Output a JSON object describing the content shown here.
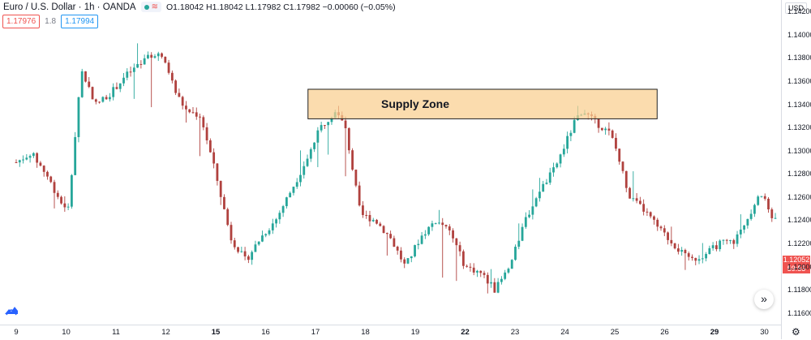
{
  "header": {
    "symbol": "Euro / U.S. Dollar · 1h · OANDA",
    "ohlc": "O1.18042 H1.18042 L1.17982 C1.17982 −0.00060 (−0.05%)",
    "status_dot_color": "#26a69a",
    "waves_icon": "waves-icon"
  },
  "trade": {
    "sell_price": "1.17976",
    "spread": "1.8",
    "buy_price": "1.17994"
  },
  "axis": {
    "currency": "USD",
    "price_tags": {
      "last": "1.12052",
      "countdown": "59:55"
    }
  },
  "colors": {
    "up": "#26a69a",
    "down": "#b0413e",
    "zone_fill": "#f9cf8f",
    "zone_border": "#222222"
  },
  "chart_data": {
    "type": "candlestick",
    "title": "",
    "ylim": [
      1.115,
      1.143
    ],
    "y_ticks": [
      "1.11600",
      "1.11800",
      "1.12000",
      "1.12200",
      "1.12400",
      "1.12600",
      "1.12800",
      "1.13000",
      "1.13200",
      "1.13400",
      "1.13600",
      "1.13800",
      "1.14000",
      "1.14200"
    ],
    "x_ticks": [
      {
        "label": "9",
        "bold": false
      },
      {
        "label": "10",
        "bold": false
      },
      {
        "label": "11",
        "bold": false
      },
      {
        "label": "12",
        "bold": false
      },
      {
        "label": "15",
        "bold": true
      },
      {
        "label": "16",
        "bold": false
      },
      {
        "label": "17",
        "bold": false
      },
      {
        "label": "18",
        "bold": false
      },
      {
        "label": "19",
        "bold": false
      },
      {
        "label": "22",
        "bold": true
      },
      {
        "label": "23",
        "bold": false
      },
      {
        "label": "24",
        "bold": false
      },
      {
        "label": "25",
        "bold": false
      },
      {
        "label": "26",
        "bold": false
      },
      {
        "label": "29",
        "bold": true
      },
      {
        "label": "30",
        "bold": false
      }
    ],
    "close_path": [
      [
        0,
        1.129
      ],
      [
        0.3,
        1.1298
      ],
      [
        0.6,
        1.128
      ],
      [
        0.9,
        1.1255
      ],
      [
        1.05,
        1.125
      ],
      [
        1.3,
        1.137
      ],
      [
        1.6,
        1.134
      ],
      [
        1.9,
        1.135
      ],
      [
        2.2,
        1.1365
      ],
      [
        2.5,
        1.1375
      ],
      [
        2.8,
        1.1385
      ],
      [
        3.0,
        1.1375
      ],
      [
        3.2,
        1.135
      ],
      [
        3.4,
        1.1335
      ],
      [
        3.7,
        1.133
      ],
      [
        4.0,
        1.128
      ],
      [
        4.3,
        1.1225
      ],
      [
        4.6,
        1.1205
      ],
      [
        4.9,
        1.1225
      ],
      [
        5.2,
        1.124
      ],
      [
        5.5,
        1.1265
      ],
      [
        5.8,
        1.129
      ],
      [
        6.1,
        1.132
      ],
      [
        6.4,
        1.1335
      ],
      [
        6.6,
        1.132
      ],
      [
        6.9,
        1.1245
      ],
      [
        7.2,
        1.124
      ],
      [
        7.5,
        1.1225
      ],
      [
        7.8,
        1.12
      ],
      [
        8.1,
        1.1225
      ],
      [
        8.4,
        1.124
      ],
      [
        8.7,
        1.123
      ],
      [
        9.0,
        1.12
      ],
      [
        9.3,
        1.1195
      ],
      [
        9.6,
        1.118
      ],
      [
        9.9,
        1.12
      ],
      [
        10.2,
        1.124
      ],
      [
        10.5,
        1.1265
      ],
      [
        10.8,
        1.1285
      ],
      [
        11.0,
        1.1305
      ],
      [
        11.2,
        1.1325
      ],
      [
        11.35,
        1.1335
      ],
      [
        11.6,
        1.1325
      ],
      [
        11.9,
        1.1315
      ],
      [
        12.0,
        1.1305
      ],
      [
        12.3,
        1.126
      ],
      [
        12.6,
        1.1248
      ],
      [
        12.9,
        1.1232
      ],
      [
        13.2,
        1.1218
      ],
      [
        13.5,
        1.1205
      ],
      [
        13.8,
        1.121
      ],
      [
        14.1,
        1.122
      ],
      [
        14.4,
        1.1222
      ],
      [
        14.7,
        1.1245
      ],
      [
        14.9,
        1.1265
      ],
      [
        15.2,
        1.124
      ],
      [
        15.5,
        1.1235
      ],
      [
        15.7,
        1.1205
      ]
    ],
    "high_path": [
      [
        0,
        1.131
      ],
      [
        1.0,
        1.1265
      ],
      [
        1.3,
        1.1375
      ],
      [
        2.0,
        1.137
      ],
      [
        2.5,
        1.14
      ],
      [
        2.8,
        1.1395
      ],
      [
        3.0,
        1.139
      ],
      [
        3.3,
        1.136
      ],
      [
        4.0,
        1.13
      ],
      [
        4.6,
        1.1235
      ],
      [
        5.2,
        1.126
      ],
      [
        5.8,
        1.131
      ],
      [
        6.1,
        1.1345
      ],
      [
        6.3,
        1.1353
      ],
      [
        6.6,
        1.133
      ],
      [
        7.5,
        1.1235
      ],
      [
        8.4,
        1.1255
      ],
      [
        9.6,
        1.1195
      ],
      [
        10.2,
        1.1255
      ],
      [
        10.8,
        1.13
      ],
      [
        11.35,
        1.1348
      ],
      [
        12.0,
        1.132
      ],
      [
        12.6,
        1.126
      ],
      [
        13.5,
        1.122
      ],
      [
        14.4,
        1.1235
      ],
      [
        14.9,
        1.128
      ],
      [
        15.7,
        1.122
      ]
    ],
    "low_path": [
      [
        0,
        1.1275
      ],
      [
        1.0,
        1.124
      ],
      [
        1.3,
        1.1305
      ],
      [
        2.0,
        1.133
      ],
      [
        2.5,
        1.1345
      ],
      [
        3.0,
        1.132
      ],
      [
        3.4,
        1.132
      ],
      [
        4.0,
        1.126
      ],
      [
        4.6,
        1.119
      ],
      [
        5.2,
        1.122
      ],
      [
        5.8,
        1.127
      ],
      [
        6.4,
        1.1305
      ],
      [
        6.9,
        1.1225
      ],
      [
        7.5,
        1.1205
      ],
      [
        8.1,
        1.12
      ],
      [
        9.0,
        1.118
      ],
      [
        9.6,
        1.117
      ],
      [
        10.2,
        1.1215
      ],
      [
        10.8,
        1.1265
      ],
      [
        11.35,
        1.131
      ],
      [
        12.0,
        1.1285
      ],
      [
        12.6,
        1.1235
      ],
      [
        13.5,
        1.119
      ],
      [
        14.4,
        1.1205
      ],
      [
        14.9,
        1.124
      ],
      [
        15.7,
        1.1195
      ]
    ],
    "annotations": [
      {
        "type": "zone",
        "label": "Supply Zone",
        "x0": 5.85,
        "x1": 12.85,
        "y_top": 1.1353,
        "y_bottom": 1.13275
      }
    ]
  }
}
